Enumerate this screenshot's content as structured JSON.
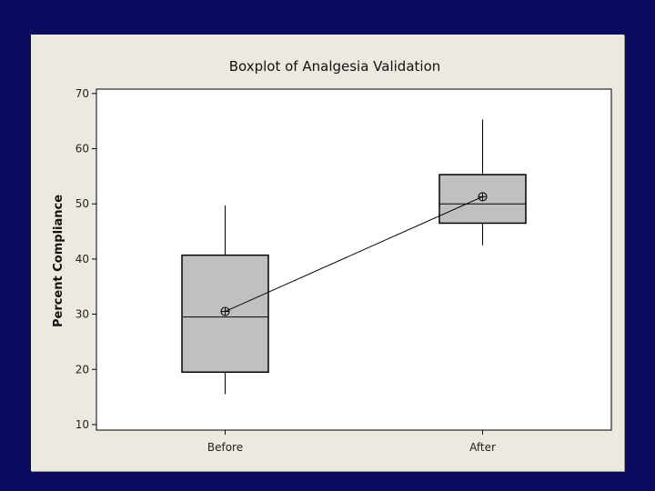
{
  "chart_data": {
    "type": "box",
    "title": "Boxplot of Analgesia Validation",
    "xlabel": "",
    "ylabel": "Percent Compliance",
    "ylim": [
      9,
      70.8
    ],
    "yticks": [
      10,
      20,
      30,
      40,
      50,
      60,
      70
    ],
    "categories": [
      "Before",
      "After"
    ],
    "boxes": [
      {
        "name": "Before",
        "min": 15.5,
        "q1": 19.5,
        "median": 29.5,
        "q3": 40.7,
        "max": 49.7,
        "mean": 30.5
      },
      {
        "name": "After",
        "min": 42.5,
        "q1": 46.5,
        "median": 50.0,
        "q3": 55.3,
        "max": 65.3,
        "mean": 51.3
      }
    ],
    "mean_connect_line": true,
    "colors": {
      "box_fill": "#c0c0c0",
      "plot_bg": "#ffffff",
      "panel_bg": "#ece9e0",
      "slide_bg": "#0a0a5e",
      "line": "#000000"
    }
  }
}
